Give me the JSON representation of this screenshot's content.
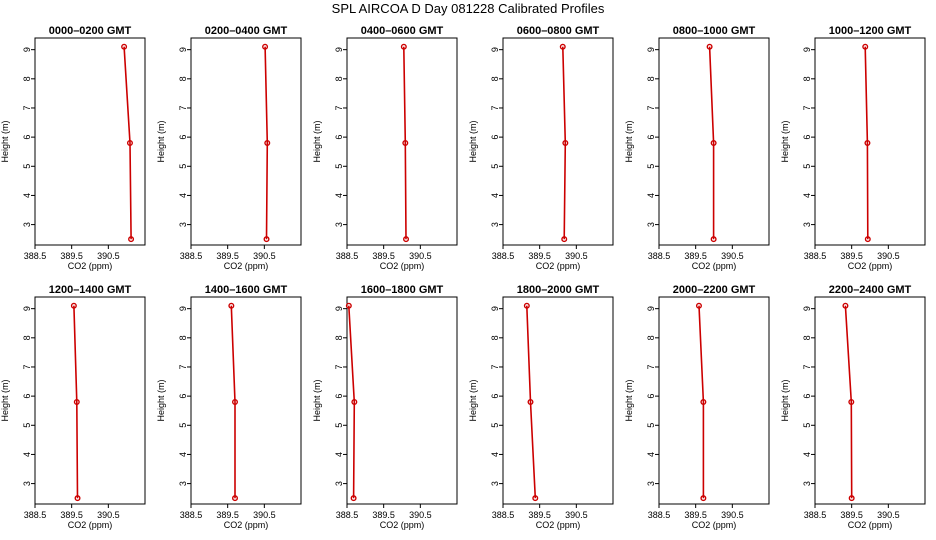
{
  "title": "SPL AIRCOA D  Day 081228  Calibrated Profiles",
  "colors": {
    "series": "#cc0000",
    "axis": "#000000"
  },
  "chart_data": [
    {
      "type": "line",
      "title": "0000–0200 GMT",
      "xlabel": "CO2 (ppm)",
      "ylabel": "Height (m)",
      "xlim": [
        388.5,
        391.5
      ],
      "ylim": [
        2.3,
        9.4
      ],
      "xticks": [
        "388.5",
        "389.5",
        "390.5"
      ],
      "yticks": [
        "3",
        "4",
        "5",
        "6",
        "7",
        "8",
        "9"
      ],
      "x": [
        390.93,
        391.09,
        391.12
      ],
      "y": [
        9.1,
        5.8,
        2.5
      ],
      "grid": false
    },
    {
      "type": "line",
      "title": "0200–0400 GMT",
      "xlabel": "CO2 (ppm)",
      "ylabel": "Height (m)",
      "xlim": [
        388.5,
        391.5
      ],
      "ylim": [
        2.3,
        9.4
      ],
      "xticks": [
        "388.5",
        "389.5",
        "390.5"
      ],
      "yticks": [
        "3",
        "4",
        "5",
        "6",
        "7",
        "8",
        "9"
      ],
      "x": [
        390.52,
        390.58,
        390.56
      ],
      "y": [
        9.1,
        5.8,
        2.5
      ],
      "grid": false
    },
    {
      "type": "line",
      "title": "0400–0600 GMT",
      "xlabel": "CO2 (ppm)",
      "ylabel": "Height (m)",
      "xlim": [
        388.5,
        391.5
      ],
      "ylim": [
        2.3,
        9.4
      ],
      "xticks": [
        "388.5",
        "389.5",
        "390.5"
      ],
      "yticks": [
        "3",
        "4",
        "5",
        "6",
        "7",
        "8",
        "9"
      ],
      "x": [
        390.05,
        390.09,
        390.11
      ],
      "y": [
        9.1,
        5.8,
        2.5
      ],
      "grid": false
    },
    {
      "type": "line",
      "title": "0600–0800 GMT",
      "xlabel": "CO2 (ppm)",
      "ylabel": "Height (m)",
      "xlim": [
        388.5,
        391.5
      ],
      "ylim": [
        2.3,
        9.4
      ],
      "xticks": [
        "388.5",
        "389.5",
        "390.5"
      ],
      "yticks": [
        "3",
        "4",
        "5",
        "6",
        "7",
        "8",
        "9"
      ],
      "x": [
        390.13,
        390.2,
        390.17
      ],
      "y": [
        9.1,
        5.8,
        2.5
      ],
      "grid": false
    },
    {
      "type": "line",
      "title": "0800–1000 GMT",
      "xlabel": "CO2 (ppm)",
      "ylabel": "Height (m)",
      "xlim": [
        388.5,
        391.5
      ],
      "ylim": [
        2.3,
        9.4
      ],
      "xticks": [
        "388.5",
        "389.5",
        "390.5"
      ],
      "yticks": [
        "3",
        "4",
        "5",
        "6",
        "7",
        "8",
        "9"
      ],
      "x": [
        389.88,
        389.99,
        389.99
      ],
      "y": [
        9.1,
        5.8,
        2.5
      ],
      "grid": false
    },
    {
      "type": "line",
      "title": "1000–1200 GMT",
      "xlabel": "CO2 (ppm)",
      "ylabel": "Height (m)",
      "xlim": [
        388.5,
        391.5
      ],
      "ylim": [
        2.3,
        9.4
      ],
      "xticks": [
        "388.5",
        "389.5",
        "390.5"
      ],
      "yticks": [
        "3",
        "4",
        "5",
        "6",
        "7",
        "8",
        "9"
      ],
      "x": [
        389.87,
        389.93,
        389.94
      ],
      "y": [
        9.1,
        5.8,
        2.5
      ],
      "grid": false
    },
    {
      "type": "line",
      "title": "1200–1400 GMT",
      "xlabel": "CO2 (ppm)",
      "ylabel": "Height (m)",
      "xlim": [
        388.5,
        391.5
      ],
      "ylim": [
        2.3,
        9.4
      ],
      "xticks": [
        "388.5",
        "389.5",
        "390.5"
      ],
      "yticks": [
        "3",
        "4",
        "5",
        "6",
        "7",
        "8",
        "9"
      ],
      "x": [
        389.56,
        389.64,
        389.66
      ],
      "y": [
        9.1,
        5.8,
        2.5
      ],
      "grid": false
    },
    {
      "type": "line",
      "title": "1400–1600 GMT",
      "xlabel": "CO2 (ppm)",
      "ylabel": "Height (m)",
      "xlim": [
        388.5,
        391.5
      ],
      "ylim": [
        2.3,
        9.4
      ],
      "xticks": [
        "388.5",
        "389.5",
        "390.5"
      ],
      "yticks": [
        "3",
        "4",
        "5",
        "6",
        "7",
        "8",
        "9"
      ],
      "x": [
        389.6,
        389.7,
        389.7
      ],
      "y": [
        9.1,
        5.8,
        2.5
      ],
      "grid": false
    },
    {
      "type": "line",
      "title": "1600–1800 GMT",
      "xlabel": "CO2 (ppm)",
      "ylabel": "Height (m)",
      "xlim": [
        388.5,
        391.5
      ],
      "ylim": [
        2.3,
        9.4
      ],
      "xticks": [
        "388.5",
        "389.5",
        "390.5"
      ],
      "yticks": [
        "3",
        "4",
        "5",
        "6",
        "7",
        "8",
        "9"
      ],
      "x": [
        388.55,
        388.7,
        388.68
      ],
      "y": [
        9.1,
        5.8,
        2.5
      ],
      "grid": false
    },
    {
      "type": "line",
      "title": "1800–2000 GMT",
      "xlabel": "CO2 (ppm)",
      "ylabel": "Height (m)",
      "xlim": [
        388.5,
        391.5
      ],
      "ylim": [
        2.3,
        9.4
      ],
      "xticks": [
        "388.5",
        "389.5",
        "390.5"
      ],
      "yticks": [
        "3",
        "4",
        "5",
        "6",
        "7",
        "8",
        "9"
      ],
      "x": [
        389.15,
        389.25,
        389.38
      ],
      "y": [
        9.1,
        5.8,
        2.5
      ],
      "grid": false
    },
    {
      "type": "line",
      "title": "2000–2200 GMT",
      "xlabel": "CO2 (ppm)",
      "ylabel": "Height (m)",
      "xlim": [
        388.5,
        391.5
      ],
      "ylim": [
        2.3,
        9.4
      ],
      "xticks": [
        "388.5",
        "389.5",
        "390.5"
      ],
      "yticks": [
        "3",
        "4",
        "5",
        "6",
        "7",
        "8",
        "9"
      ],
      "x": [
        389.59,
        389.71,
        389.71
      ],
      "y": [
        9.1,
        5.8,
        2.5
      ],
      "grid": false
    },
    {
      "type": "line",
      "title": "2200–2400 GMT",
      "xlabel": "CO2 (ppm)",
      "ylabel": "Height (m)",
      "xlim": [
        388.5,
        391.5
      ],
      "ylim": [
        2.3,
        9.4
      ],
      "xticks": [
        "388.5",
        "389.5",
        "390.5"
      ],
      "yticks": [
        "3",
        "4",
        "5",
        "6",
        "7",
        "8",
        "9"
      ],
      "x": [
        389.33,
        389.49,
        389.5
      ],
      "y": [
        9.1,
        5.8,
        2.5
      ],
      "grid": false
    }
  ]
}
